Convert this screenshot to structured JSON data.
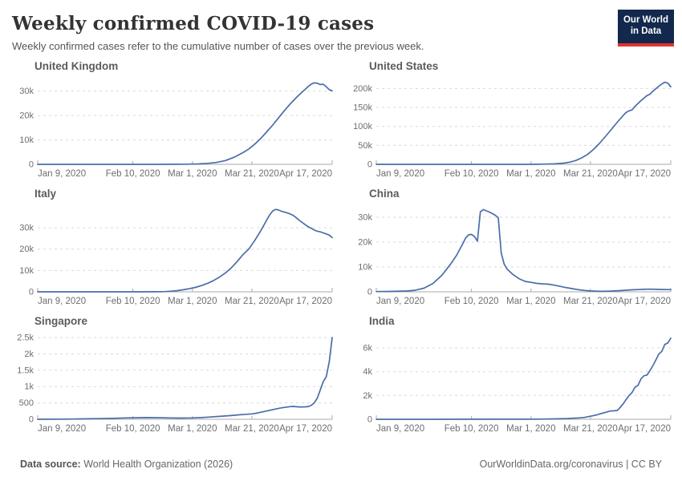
{
  "header": {
    "title": "Weekly confirmed COVID-19 cases",
    "subtitle": "Weekly confirmed cases refer to the cumulative number of cases over the previous week."
  },
  "logo": {
    "line1": "Our World",
    "line2": "in Data",
    "bg_color": "#12284C",
    "bar_color": "#E0342F"
  },
  "footer": {
    "source_label": "Data source:",
    "source_value": " World Health Organization (2026)",
    "right_text": "OurWorldinData.org/coronavirus | CC BY"
  },
  "chart_data": {
    "type": "line",
    "colors": {
      "line": "#4A6DA8",
      "grid": "#d9d9d9",
      "axis": "#a9a9a9",
      "tick_label": "#6e6e6e"
    },
    "x_axis": {
      "xmax": 99,
      "ticks": [
        {
          "day": 0,
          "label": "Jan 9, 2020"
        },
        {
          "day": 32,
          "label": "Feb 10, 2020"
        },
        {
          "day": 52,
          "label": "Mar 1, 2020"
        },
        {
          "day": 72,
          "label": "Mar 21, 2020"
        },
        {
          "day": 99,
          "label": "Apr 17, 2020"
        }
      ]
    },
    "charts": [
      {
        "title": "United Kingdom",
        "ymax": 34800,
        "yticks": [
          {
            "v": 0,
            "label": "0"
          },
          {
            "v": 10000,
            "label": "10k"
          },
          {
            "v": 20000,
            "label": "20k"
          },
          {
            "v": 30000,
            "label": "30k"
          }
        ],
        "points": [
          [
            0,
            0
          ],
          [
            10,
            0
          ],
          [
            20,
            3
          ],
          [
            30,
            8
          ],
          [
            40,
            15
          ],
          [
            46,
            35
          ],
          [
            50,
            80
          ],
          [
            54,
            180
          ],
          [
            57,
            380
          ],
          [
            60,
            750
          ],
          [
            63,
            1500
          ],
          [
            66,
            2900
          ],
          [
            69,
            4800
          ],
          [
            71,
            6300
          ],
          [
            73,
            8300
          ],
          [
            75,
            10600
          ],
          [
            77,
            13300
          ],
          [
            79,
            16100
          ],
          [
            81,
            19100
          ],
          [
            83,
            22100
          ],
          [
            85,
            24900
          ],
          [
            87,
            27400
          ],
          [
            89,
            29700
          ],
          [
            90,
            30800
          ],
          [
            91,
            31900
          ],
          [
            92,
            32900
          ],
          [
            93,
            33400
          ],
          [
            94,
            33200
          ],
          [
            95,
            32700
          ],
          [
            96,
            32800
          ],
          [
            97,
            31800
          ],
          [
            98,
            30600
          ],
          [
            99,
            30100
          ]
        ]
      },
      {
        "title": "United States",
        "ymax": 224000,
        "yticks": [
          {
            "v": 0,
            "label": "0"
          },
          {
            "v": 50000,
            "label": "50k"
          },
          {
            "v": 100000,
            "label": "100k"
          },
          {
            "v": 150000,
            "label": "150k"
          },
          {
            "v": 200000,
            "label": "200k"
          }
        ],
        "points": [
          [
            0,
            0
          ],
          [
            20,
            5
          ],
          [
            40,
            25
          ],
          [
            50,
            90
          ],
          [
            54,
            220
          ],
          [
            57,
            550
          ],
          [
            60,
            1300
          ],
          [
            63,
            3200
          ],
          [
            65,
            5800
          ],
          [
            67,
            10000
          ],
          [
            69,
            17000
          ],
          [
            71,
            26000
          ],
          [
            73,
            39000
          ],
          [
            75,
            55000
          ],
          [
            77,
            73000
          ],
          [
            79,
            92000
          ],
          [
            81,
            111000
          ],
          [
            83,
            129000
          ],
          [
            84,
            137000
          ],
          [
            85,
            141000
          ],
          [
            86,
            144000
          ],
          [
            87,
            153000
          ],
          [
            89,
            168000
          ],
          [
            91,
            181000
          ],
          [
            92,
            185000
          ],
          [
            93,
            193000
          ],
          [
            95,
            206000
          ],
          [
            96,
            212000
          ],
          [
            97,
            216500
          ],
          [
            98,
            214000
          ],
          [
            99,
            204500
          ]
        ]
      },
      {
        "title": "Italy",
        "ymax": 39800,
        "yticks": [
          {
            "v": 0,
            "label": "0"
          },
          {
            "v": 10000,
            "label": "10k"
          },
          {
            "v": 20000,
            "label": "20k"
          },
          {
            "v": 30000,
            "label": "30k"
          }
        ],
        "points": [
          [
            0,
            0
          ],
          [
            20,
            0
          ],
          [
            35,
            10
          ],
          [
            40,
            45
          ],
          [
            43,
            130
          ],
          [
            45,
            290
          ],
          [
            47,
            560
          ],
          [
            49,
            960
          ],
          [
            51,
            1450
          ],
          [
            53,
            2050
          ],
          [
            55,
            2900
          ],
          [
            57,
            3900
          ],
          [
            59,
            5200
          ],
          [
            61,
            6800
          ],
          [
            63,
            8700
          ],
          [
            65,
            11100
          ],
          [
            67,
            14100
          ],
          [
            69,
            17400
          ],
          [
            71,
            20100
          ],
          [
            73,
            24100
          ],
          [
            75,
            28600
          ],
          [
            76,
            31100
          ],
          [
            77,
            33600
          ],
          [
            78,
            36100
          ],
          [
            79,
            37900
          ],
          [
            80,
            38600
          ],
          [
            81,
            38300
          ],
          [
            82,
            37700
          ],
          [
            84,
            36900
          ],
          [
            85,
            36400
          ],
          [
            86,
            35700
          ],
          [
            87,
            34600
          ],
          [
            88,
            33400
          ],
          [
            89,
            32400
          ],
          [
            90,
            31400
          ],
          [
            91,
            30400
          ],
          [
            92,
            29700
          ],
          [
            93,
            28900
          ],
          [
            94,
            28400
          ],
          [
            95,
            28100
          ],
          [
            96,
            27600
          ],
          [
            97,
            27100
          ],
          [
            98,
            26600
          ],
          [
            99,
            25400
          ]
        ]
      },
      {
        "title": "China",
        "ymax": 34200,
        "yticks": [
          {
            "v": 0,
            "label": "0"
          },
          {
            "v": 10000,
            "label": "10k"
          },
          {
            "v": 20000,
            "label": "20k"
          },
          {
            "v": 30000,
            "label": "30k"
          }
        ],
        "points": [
          [
            0,
            100
          ],
          [
            5,
            160
          ],
          [
            10,
            320
          ],
          [
            13,
            620
          ],
          [
            16,
            1450
          ],
          [
            19,
            3300
          ],
          [
            22,
            6600
          ],
          [
            25,
            11200
          ],
          [
            27,
            14700
          ],
          [
            29,
            19200
          ],
          [
            30,
            21600
          ],
          [
            31,
            22900
          ],
          [
            32,
            23100
          ],
          [
            33,
            22300
          ],
          [
            34,
            20400
          ],
          [
            35,
            32200
          ],
          [
            36,
            33100
          ],
          [
            37,
            32600
          ],
          [
            38,
            32100
          ],
          [
            39,
            31500
          ],
          [
            40,
            30800
          ],
          [
            41,
            29800
          ],
          [
            42,
            15600
          ],
          [
            43,
            11100
          ],
          [
            44,
            9100
          ],
          [
            46,
            6900
          ],
          [
            48,
            5300
          ],
          [
            50,
            4200
          ],
          [
            52,
            3800
          ],
          [
            54,
            3400
          ],
          [
            56,
            3200
          ],
          [
            58,
            3050
          ],
          [
            60,
            2650
          ],
          [
            62,
            2150
          ],
          [
            64,
            1650
          ],
          [
            66,
            1250
          ],
          [
            68,
            850
          ],
          [
            70,
            550
          ],
          [
            72,
            350
          ],
          [
            74,
            250
          ],
          [
            76,
            200
          ],
          [
            78,
            250
          ],
          [
            80,
            350
          ],
          [
            82,
            500
          ],
          [
            84,
            650
          ],
          [
            86,
            800
          ],
          [
            88,
            900
          ],
          [
            90,
            1000
          ],
          [
            92,
            1050
          ],
          [
            94,
            1000
          ],
          [
            96,
            950
          ],
          [
            98,
            900
          ],
          [
            99,
            880
          ]
        ]
      },
      {
        "title": "Singapore",
        "ymax": 2600,
        "yticks": [
          {
            "v": 0,
            "label": "0"
          },
          {
            "v": 500,
            "label": "500"
          },
          {
            "v": 1000,
            "label": "1k"
          },
          {
            "v": 1500,
            "label": "1.5k"
          },
          {
            "v": 2000,
            "label": "2k"
          },
          {
            "v": 2500,
            "label": "2.5k"
          }
        ],
        "points": [
          [
            0,
            0
          ],
          [
            10,
            4
          ],
          [
            15,
            12
          ],
          [
            20,
            20
          ],
          [
            25,
            30
          ],
          [
            30,
            42
          ],
          [
            33,
            47
          ],
          [
            36,
            52
          ],
          [
            40,
            50
          ],
          [
            44,
            42
          ],
          [
            48,
            37
          ],
          [
            52,
            42
          ],
          [
            55,
            52
          ],
          [
            58,
            68
          ],
          [
            61,
            88
          ],
          [
            64,
            108
          ],
          [
            66,
            122
          ],
          [
            68,
            138
          ],
          [
            70,
            152
          ],
          [
            72,
            165
          ],
          [
            74,
            195
          ],
          [
            76,
            235
          ],
          [
            78,
            275
          ],
          [
            80,
            315
          ],
          [
            82,
            350
          ],
          [
            84,
            375
          ],
          [
            85,
            388
          ],
          [
            86,
            392
          ],
          [
            87,
            382
          ],
          [
            88,
            377
          ],
          [
            89,
            377
          ],
          [
            90,
            380
          ],
          [
            91,
            390
          ],
          [
            92,
            430
          ],
          [
            93,
            505
          ],
          [
            94,
            650
          ],
          [
            95,
            900
          ],
          [
            96,
            1150
          ],
          [
            97,
            1300
          ],
          [
            98,
            1750
          ],
          [
            99,
            2500
          ]
        ]
      },
      {
        "title": "India",
        "ymax": 7150,
        "yticks": [
          {
            "v": 0,
            "label": "0"
          },
          {
            "v": 2000,
            "label": "2k"
          },
          {
            "v": 4000,
            "label": "4k"
          },
          {
            "v": 6000,
            "label": "6k"
          }
        ],
        "points": [
          [
            0,
            0
          ],
          [
            20,
            2
          ],
          [
            40,
            5
          ],
          [
            50,
            9
          ],
          [
            55,
            16
          ],
          [
            60,
            32
          ],
          [
            64,
            58
          ],
          [
            66,
            85
          ],
          [
            68,
            115
          ],
          [
            70,
            155
          ],
          [
            72,
            255
          ],
          [
            74,
            360
          ],
          [
            75,
            440
          ],
          [
            76,
            510
          ],
          [
            77,
            570
          ],
          [
            78,
            655
          ],
          [
            79,
            700
          ],
          [
            80,
            715
          ],
          [
            81,
            745
          ],
          [
            82,
            1000
          ],
          [
            83,
            1300
          ],
          [
            84,
            1660
          ],
          [
            85,
            2000
          ],
          [
            86,
            2260
          ],
          [
            87,
            2700
          ],
          [
            88,
            2860
          ],
          [
            89,
            3400
          ],
          [
            90,
            3660
          ],
          [
            91,
            3720
          ],
          [
            92,
            4100
          ],
          [
            93,
            4520
          ],
          [
            94,
            5000
          ],
          [
            95,
            5500
          ],
          [
            96,
            5720
          ],
          [
            97,
            6300
          ],
          [
            98,
            6420
          ],
          [
            99,
            6820
          ]
        ]
      }
    ]
  }
}
